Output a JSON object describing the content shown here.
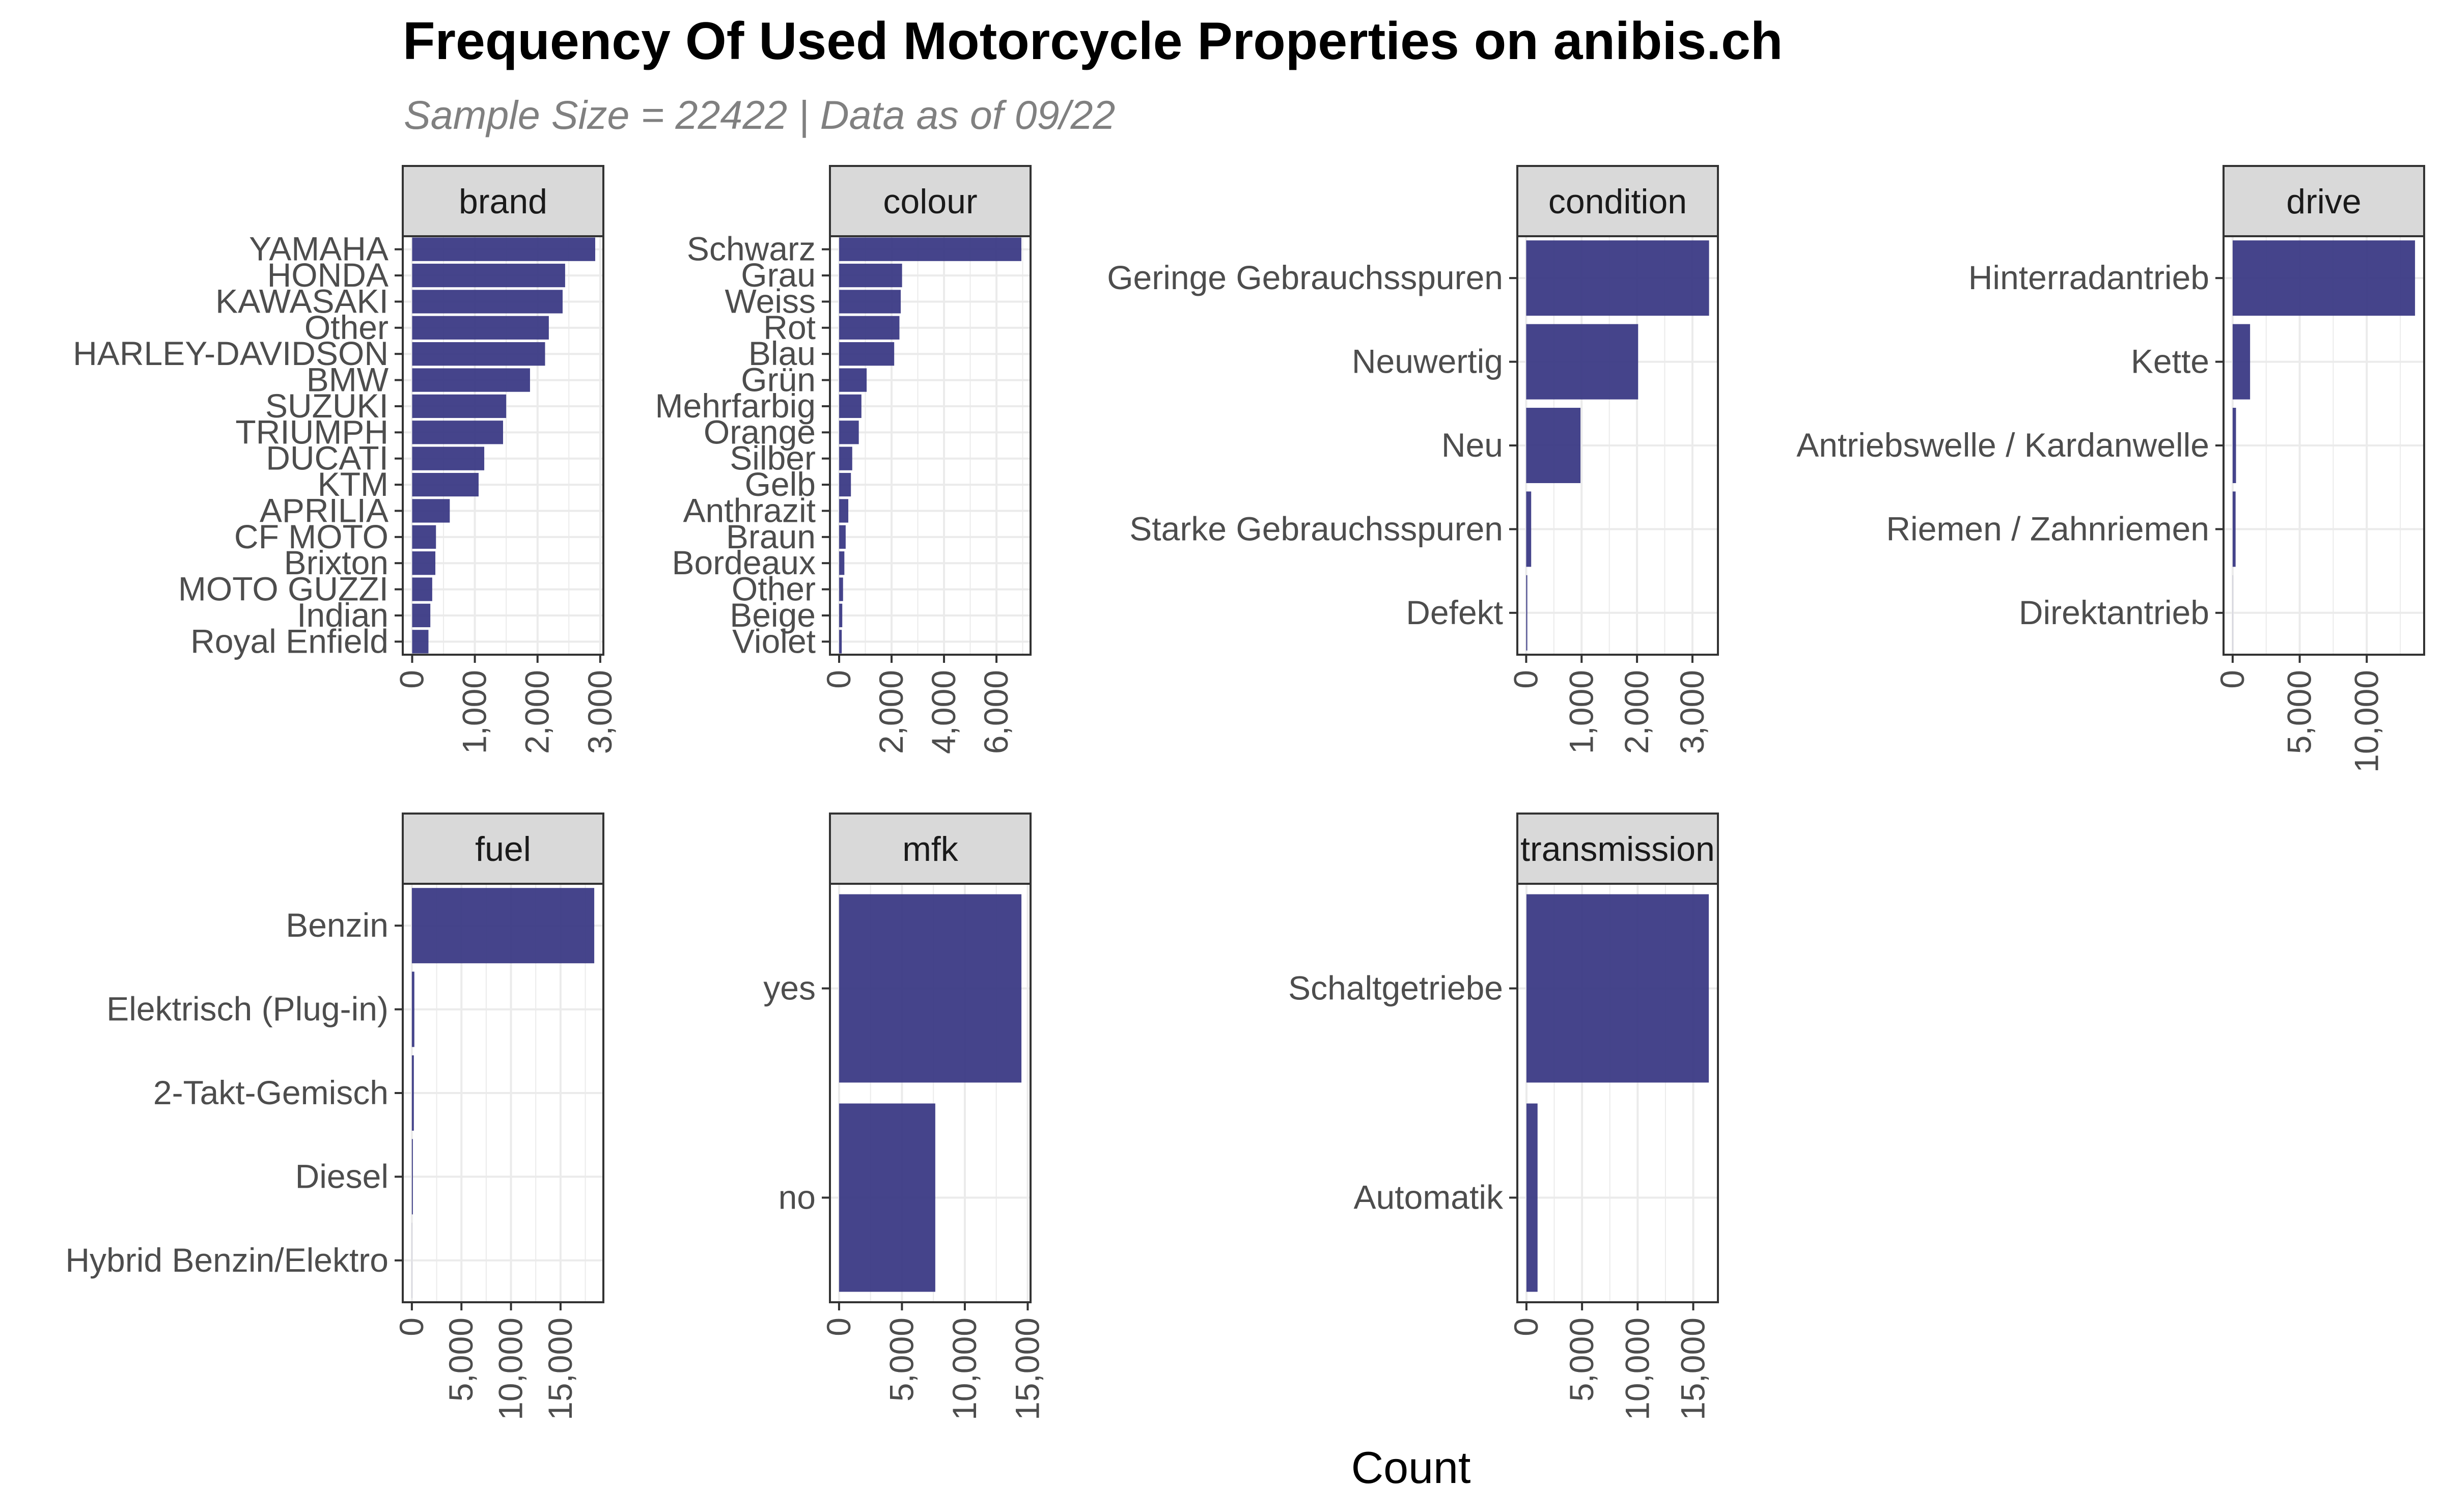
{
  "chart_data": {
    "type": "bar",
    "title": "Frequency Of Used Motorcycle Properties on anibis.ch",
    "subtitle": "Sample Size = 22422 | Data as of 09/22",
    "xlabel": "Count",
    "ylabel": "",
    "orientation": "horizontal",
    "bar_color": "#3B3A85",
    "strip_fill": "#D9D9D9",
    "grid": true,
    "panels": [
      {
        "name": "brand",
        "categories": [
          "YAMAHA",
          "HONDA",
          "KAWASAKI",
          "Other",
          "HARLEY-DAVIDSON",
          "BMW",
          "SUZUKI",
          "TRIUMPH",
          "DUCATI",
          "KTM",
          "APRILIA",
          "CF MOTO",
          "Brixton",
          "MOTO GUZZI",
          "Indian",
          "Royal Enfield"
        ],
        "values": [
          2920,
          2440,
          2400,
          2180,
          2120,
          1880,
          1500,
          1450,
          1150,
          1060,
          600,
          380,
          370,
          320,
          290,
          260
        ],
        "xlim": [
          -150,
          3050
        ],
        "ticks": [
          0,
          1000,
          2000,
          3000
        ],
        "tick_labels": [
          "0",
          "1,000",
          "2,000",
          "3,000"
        ]
      },
      {
        "name": "colour",
        "categories": [
          "Schwarz",
          "Grau",
          "Weiss",
          "Rot",
          "Blau",
          "Grün",
          "Mehrfarbig",
          "Orange",
          "Silber",
          "Gelb",
          "Anthrazit",
          "Braun",
          "Bordeaux",
          "Other",
          "Beige",
          "Violet"
        ],
        "values": [
          6950,
          2400,
          2350,
          2300,
          2100,
          1050,
          850,
          750,
          500,
          450,
          350,
          250,
          200,
          150,
          120,
          100
        ],
        "xlim": [
          -350,
          7300
        ],
        "ticks": [
          0,
          2000,
          4000,
          6000
        ],
        "tick_labels": [
          "0",
          "2,000",
          "4,000",
          "6,000"
        ]
      },
      {
        "name": "condition",
        "categories": [
          "Geringe Gebrauchsspuren",
          "Neuwertig",
          "Neu",
          "Starke Gebrauchsspuren",
          "Defekt"
        ],
        "values": [
          3300,
          2020,
          980,
          90,
          20
        ],
        "xlim": [
          -160,
          3460
        ],
        "ticks": [
          0,
          1000,
          2000,
          3000
        ],
        "tick_labels": [
          "0",
          "1,000",
          "2,000",
          "3,000"
        ]
      },
      {
        "name": "drive",
        "categories": [
          "Hinterradantrieb",
          "Kette",
          "Antriebswelle / Kardanwelle",
          "Riemen / Zahnriemen",
          "Direktantrieb"
        ],
        "values": [
          13600,
          1300,
          250,
          220,
          10
        ],
        "xlim": [
          -680,
          14280
        ],
        "ticks": [
          0,
          5000,
          10000
        ],
        "tick_labels": [
          "0",
          "5,000",
          "10,000"
        ]
      },
      {
        "name": "fuel",
        "categories": [
          "Benzin",
          "Elektrisch (Plug-in)",
          "2-Takt-Gemisch",
          "Diesel",
          "Hybrid Benzin/Elektro"
        ],
        "values": [
          18400,
          250,
          200,
          100,
          10
        ],
        "xlim": [
          -920,
          19320
        ],
        "ticks": [
          0,
          5000,
          10000,
          15000
        ],
        "tick_labels": [
          "0",
          "5,000",
          "10,000",
          "15,000"
        ]
      },
      {
        "name": "mfk",
        "categories": [
          "yes",
          "no"
        ],
        "values": [
          14500,
          7650
        ],
        "xlim": [
          -725,
          15225
        ],
        "ticks": [
          0,
          5000,
          10000,
          15000
        ],
        "tick_labels": [
          "0",
          "5,000",
          "10,000",
          "15,000"
        ]
      },
      {
        "name": "transmission",
        "categories": [
          "Schaltgetriebe",
          "Automatik"
        ],
        "values": [
          16400,
          1000
        ],
        "xlim": [
          -820,
          17220
        ],
        "ticks": [
          0,
          5000,
          10000,
          15000
        ],
        "tick_labels": [
          "0",
          "5,000",
          "10,000",
          "15,000"
        ]
      }
    ]
  }
}
